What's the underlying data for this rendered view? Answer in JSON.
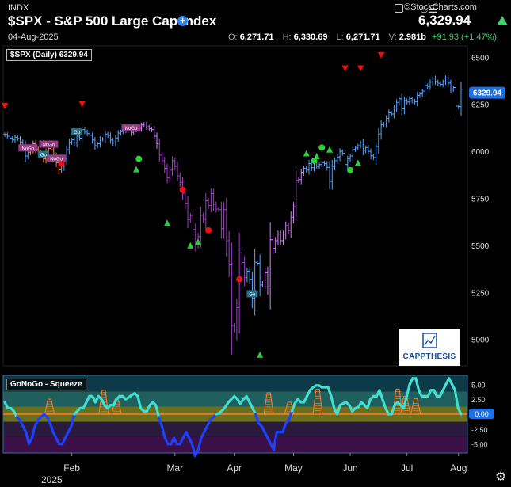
{
  "header": {
    "exchange": "INDX",
    "title": "$SPX - S&P 500 Large Cap Index",
    "add_icon": "plus-circle-icon",
    "date": "04-Aug-2025",
    "brand": "©StockCharts.com",
    "last_price": "6,329.94",
    "ohlc": {
      "open_label": "O:",
      "open": "6,271.71",
      "high_label": "H:",
      "high": "6,330.69",
      "low_label": "L:",
      "low": "6,271.71",
      "volume_label": "V:",
      "volume": "2.981b",
      "change": "+91.93 (+1.47%)"
    }
  },
  "chart_data": [
    {
      "type": "ohlc",
      "legend": "$SPX (Daily) 6329.94",
      "last_value": 6329.94,
      "last_value_label": "6329.94",
      "y_ticks": [
        5000,
        5250,
        5500,
        5750,
        6000,
        6250,
        6500
      ],
      "ylim": [
        4860,
        6560
      ],
      "x_labels": [
        "Feb",
        "Mar",
        "Apr",
        "May",
        "Jun",
        "Jul",
        "Aug"
      ],
      "year_label": "2025",
      "colors": {
        "up": "#58a6ff",
        "neutral": "#ff8c42",
        "weak": "#d580ff",
        "bear": "#a040c8"
      },
      "closes": [
        6090,
        6080,
        6070,
        6060,
        6075,
        6068,
        6050,
        6030,
        5975,
        5995,
        6010,
        6040,
        6012,
        5996,
        5982,
        5960,
        5996,
        6015,
        6008,
        5975,
        5940,
        5902,
        5922,
        5960,
        6008,
        6048,
        6061,
        6045,
        6080,
        6070,
        6115,
        6105,
        6094,
        6085,
        6060,
        6030,
        6040,
        6065,
        6065,
        6092,
        6085,
        6060,
        6045,
        6071,
        6097,
        6105,
        6110,
        6118,
        6125,
        6101,
        6114,
        6117,
        6121,
        6140,
        6145,
        6130,
        6120,
        6115,
        6080,
        6040,
        5980,
        5950,
        5910,
        5860,
        5900,
        5950,
        5920,
        5870,
        5835,
        5777,
        5724,
        5638,
        5659,
        5585,
        5510,
        5547,
        5660,
        5639,
        5737,
        5712,
        5775,
        5718,
        5693,
        5690,
        5589,
        5690,
        5525,
        5396,
        5074,
        5055,
        5170,
        5460,
        5409,
        5328,
        5363,
        5320,
        5220,
        5410,
        5405,
        5290,
        5300,
        5355,
        5280,
        5530,
        5484,
        5525,
        5560,
        5525,
        5560,
        5605,
        5580,
        5650,
        5705,
        5845,
        5850,
        5888,
        5910,
        5900,
        5935,
        5913,
        5940,
        5920,
        5930,
        5940,
        5935,
        5915,
        5840,
        5920,
        5950,
        5970,
        6000,
        5990,
        5930,
        5960,
        5975,
        6010,
        6018,
        6030,
        6045,
        6005,
        6020,
        6000,
        5976,
        5967,
        6025,
        6092,
        6141,
        6145,
        6175,
        6205,
        6198,
        6230,
        6260,
        6279,
        6225,
        6270,
        6262,
        6280,
        6268,
        6263,
        6297,
        6305,
        6320,
        6350,
        6345,
        6368,
        6389,
        6370,
        6362,
        6355,
        6370,
        6390,
        6363,
        6330,
        6339,
        6240,
        6238,
        6330
      ],
      "sell_signals": [
        [
          0,
          6240
        ],
        [
          30,
          6250
        ],
        [
          132,
          6440
        ],
        [
          138,
          6440
        ],
        [
          146,
          6510
        ]
      ],
      "buy_signals": [
        [
          51,
          5905
        ],
        [
          63,
          5620
        ],
        [
          72,
          5500
        ],
        [
          75,
          5520
        ],
        [
          99,
          4920
        ],
        [
          117,
          5990
        ],
        [
          121,
          5975
        ],
        [
          126,
          6010
        ],
        [
          137,
          5940
        ]
      ],
      "red_dots": [
        [
          22,
          5935
        ],
        [
          69,
          5795
        ],
        [
          79,
          5580
        ],
        [
          91,
          5320
        ]
      ],
      "tags": [
        {
          "i": 9,
          "label": "NoGo",
          "color": "#9b3c88"
        },
        {
          "i": 17,
          "label": "NoGo",
          "color": "#9b3c88"
        },
        {
          "i": 15,
          "label": "Go",
          "color": "#2b6f86"
        },
        {
          "i": 20,
          "label": "NoGo",
          "color": "#9b3c88"
        },
        {
          "i": 28,
          "label": "Go",
          "color": "#2b6f86"
        },
        {
          "i": 49,
          "label": "NoGo",
          "color": "#9b3c88"
        },
        {
          "i": 96,
          "label": "Go",
          "color": "#2b6f86"
        }
      ]
    },
    {
      "type": "line",
      "legend": "GoNoGo - Squeeze",
      "last_value_label": "0.00",
      "y_ticks": [
        5,
        2.5,
        0,
        -2.5,
        -5
      ],
      "y_tick_labels": [
        "5.00",
        "2.50",
        "0.00",
        "-2.50",
        "-5.00"
      ],
      "ylim": [
        -6.5,
        6.5
      ],
      "colors": {
        "line_up": "#3fe0d0",
        "line_down": "#1e40ff",
        "zero": "#ff7f27",
        "squeeze": "#ff7f27"
      },
      "bands": [
        "#0d3a48",
        "#1f5f5e",
        "#6b6e1c",
        "#2a1a3e",
        "#3a1046"
      ],
      "values": [
        2,
        1,
        1,
        0.5,
        -0.5,
        -1,
        -2,
        -3,
        -5,
        -4,
        -2,
        -1,
        -0.5,
        0,
        -0.5,
        -1.5,
        -3,
        -4,
        -5,
        -5,
        -4,
        -3,
        -2,
        0,
        0.5,
        1,
        1,
        2,
        3,
        3,
        2,
        3,
        2.5,
        1.5,
        1,
        1.5,
        1.5,
        2.5,
        3,
        3,
        2.5,
        2.8,
        3.2,
        3.5,
        3,
        1,
        0.5,
        0.5,
        1.5,
        2,
        1.5,
        -0.5,
        -2,
        -4,
        -5,
        -5,
        -4,
        -5,
        -5,
        -4,
        -3,
        -4,
        -5,
        -7,
        -6,
        -4,
        -3,
        -2,
        -1,
        -0.5,
        0,
        0.2,
        0.6,
        1.2,
        2,
        2.5,
        3,
        2.5,
        1.8,
        2.5,
        3,
        2,
        1,
        0,
        -1.5,
        -2,
        -3,
        -4,
        -5,
        -6,
        -3,
        -3,
        -3,
        -1.5,
        -1,
        0.5,
        1.8,
        2.5,
        2,
        2,
        3,
        4,
        4.5,
        4.8,
        4.8,
        4.5,
        4.5,
        4.5,
        3,
        1,
        0,
        1.5,
        1.8,
        2,
        1.5,
        0.5,
        1,
        1.2,
        2,
        1.5,
        1,
        2.5,
        3,
        3,
        4,
        2.5,
        1,
        0,
        0,
        1.5,
        2,
        1.5,
        1,
        3,
        5,
        6,
        6,
        4,
        3,
        3,
        3,
        4,
        4,
        3,
        3,
        4,
        5,
        6,
        5,
        4,
        1,
        0
      ],
      "squeeze_peaks": [
        [
          18,
          2.5
        ],
        [
          39,
          4.0
        ],
        [
          44,
          2.5
        ],
        [
          103,
          3.6
        ],
        [
          111,
          2.0
        ],
        [
          122,
          4.2
        ],
        [
          153,
          4.2
        ],
        [
          156,
          3.0
        ],
        [
          160,
          2.6
        ]
      ]
    }
  ]
}
